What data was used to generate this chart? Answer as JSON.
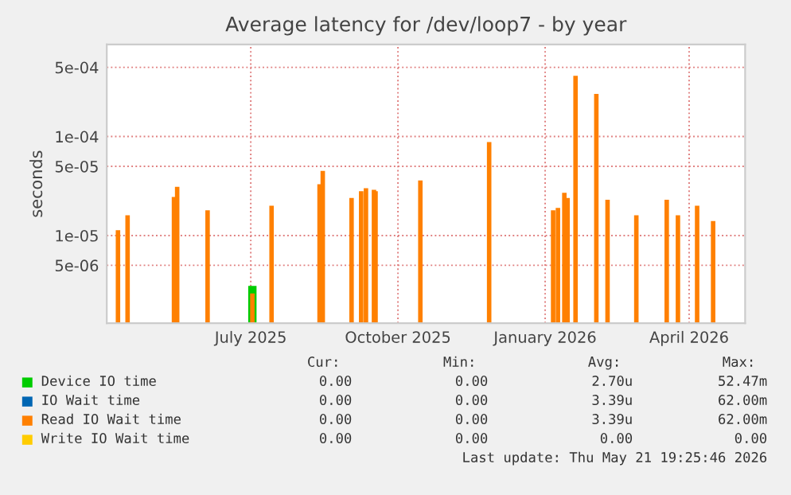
{
  "chart_data": {
    "type": "bar",
    "title": "Average latency for /dev/loop7 - by year",
    "ylabel": "seconds",
    "x": [
      "2025-04-24",
      "2025-04-30",
      "2025-05-29",
      "2025-05-31",
      "2025-06-19",
      "2025-07-17",
      "2025-07-29",
      "2025-08-28",
      "2025-08-30",
      "2025-09-17",
      "2025-09-23",
      "2025-09-26",
      "2025-10-01",
      "2025-10-02",
      "2025-10-30",
      "2025-12-12",
      "2026-01-21",
      "2026-01-24",
      "2026-01-28",
      "2026-01-30",
      "2026-02-04",
      "2026-02-17",
      "2026-02-24",
      "2026-03-14",
      "2026-04-02",
      "2026-04-09",
      "2026-04-21",
      "2026-05-01"
    ],
    "series": [
      {
        "name": "Device IO time",
        "color": "#00cc00",
        "values": [
          null,
          null,
          null,
          null,
          null,
          3.1e-06,
          null,
          null,
          null,
          null,
          null,
          null,
          null,
          null,
          null,
          null,
          null,
          null,
          null,
          null,
          null,
          null,
          null,
          null,
          null,
          null,
          null,
          null
        ]
      },
      {
        "name": "IO Wait time",
        "color": "#0066b3",
        "values": [
          null,
          null,
          null,
          null,
          null,
          null,
          null,
          null,
          null,
          null,
          null,
          null,
          null,
          null,
          null,
          null,
          null,
          null,
          null,
          null,
          null,
          null,
          null,
          null,
          null,
          null,
          null,
          null
        ]
      },
      {
        "name": "Read IO Wait time",
        "color": "#ff8000",
        "values": [
          1.13e-05,
          1.6e-05,
          2.45e-05,
          3.1e-05,
          1.8e-05,
          2.6e-06,
          2e-05,
          3.3e-05,
          4.5e-05,
          2.4e-05,
          2.8e-05,
          3e-05,
          2.9e-05,
          2.8e-05,
          3.6e-05,
          8.8e-05,
          1.8e-05,
          1.9e-05,
          2.7e-05,
          2.4e-05,
          0.00041,
          0.00027,
          2.3e-05,
          1.6e-05,
          2.3e-05,
          1.6e-05,
          2e-05,
          1.4e-05
        ]
      },
      {
        "name": "Write IO Wait time",
        "color": "#ffcc00",
        "values": [
          null,
          null,
          null,
          null,
          null,
          null,
          null,
          null,
          null,
          null,
          null,
          null,
          null,
          null,
          null,
          null,
          null,
          null,
          null,
          null,
          null,
          null,
          null,
          null,
          null,
          null,
          null,
          null
        ]
      }
    ],
    "log": "y",
    "ylim": [
      1.3e-06,
      0.00085
    ],
    "yticks": [
      {
        "value": 0.0005,
        "label": "5e-04"
      },
      {
        "value": 0.0001,
        "label": "1e-04"
      },
      {
        "value": 5e-05,
        "label": "5e-05"
      },
      {
        "value": 1e-05,
        "label": "1e-05"
      },
      {
        "value": 5e-06,
        "label": "5e-06"
      }
    ],
    "xlim": [
      "2025-04-17",
      "2026-05-21"
    ],
    "xticks": [
      {
        "value": "2025-07-16",
        "label": "July 2025"
      },
      {
        "value": "2025-10-16",
        "label": "October 2025"
      },
      {
        "value": "2026-01-16",
        "label": "January 2026"
      },
      {
        "value": "2026-04-16",
        "label": "April 2026"
      }
    ],
    "grid": true,
    "legend": "bottom",
    "annotations": [
      "Cur:",
      "Min:",
      "Avg:",
      "Max:",
      "0.00",
      "0.00",
      "2.70u",
      "52.47m",
      "0.00",
      "0.00",
      "3.39u",
      "62.00m",
      "0.00",
      "0.00",
      "3.39u",
      "62.00m",
      "0.00",
      "0.00",
      "0.00",
      "0.00",
      "Last update: Thu May 21 19:25:46 2026"
    ]
  }
}
